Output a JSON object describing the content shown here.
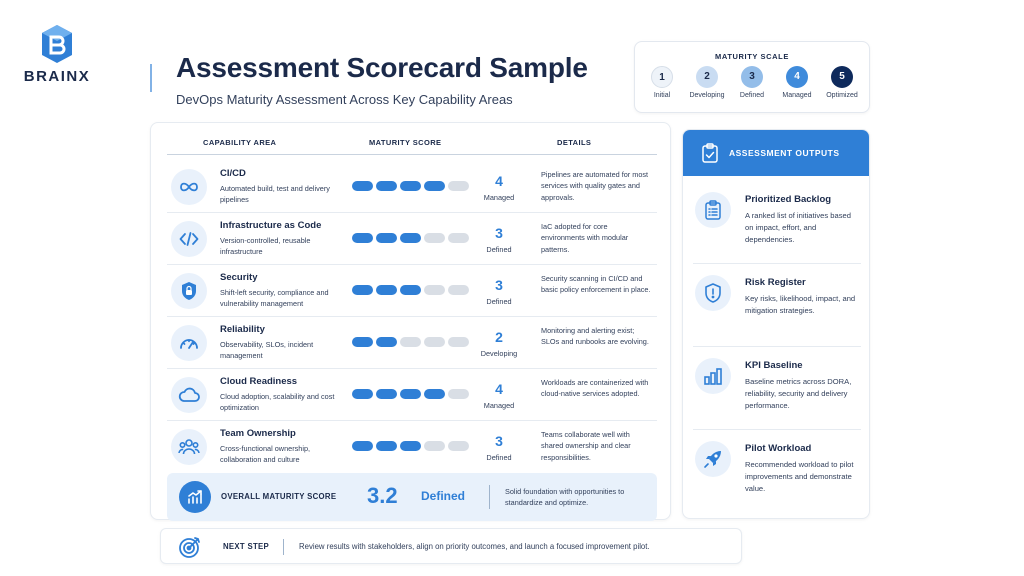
{
  "brand": {
    "name": "BRAINX"
  },
  "header": {
    "title": "Assessment Scorecard Sample",
    "subtitle": "DevOps Maturity Assessment Across Key Capability Areas"
  },
  "maturity_scale": {
    "title": "MATURITY SCALE",
    "levels": [
      {
        "number": "1",
        "label": "Initial",
        "color": "#eef3f9"
      },
      {
        "number": "2",
        "label": "Developing",
        "color": "#c9dcf2"
      },
      {
        "number": "3",
        "label": "Defined",
        "color": "#93bde9"
      },
      {
        "number": "4",
        "label": "Managed",
        "color": "#3f8bdb"
      },
      {
        "number": "5",
        "label": "Optimized",
        "color": "#0e2a5c"
      }
    ]
  },
  "table": {
    "headers": {
      "capability": "CAPABILITY AREA",
      "score": "MATURITY SCORE",
      "details": "DETAILS"
    },
    "max_score": 5,
    "rows": [
      {
        "icon": "infinity-icon",
        "title": "CI/CD",
        "description": "Automated build, test and delivery pipelines",
        "score": 4,
        "score_text": "4",
        "level": "Managed",
        "details": "Pipelines are automated for most services with quality gates and approvals."
      },
      {
        "icon": "code-icon",
        "title": "Infrastructure as Code",
        "description": "Version-controlled, reusable infrastructure",
        "score": 3,
        "score_text": "3",
        "level": "Defined",
        "details": "IaC adopted for core environments with modular patterns."
      },
      {
        "icon": "shield-lock-icon",
        "title": "Security",
        "description": "Shift-left security, compliance and vulnerability management",
        "score": 3,
        "score_text": "3",
        "level": "Defined",
        "details": "Security scanning in CI/CD and basic policy enforcement in place."
      },
      {
        "icon": "gauge-icon",
        "title": "Reliability",
        "description": "Observability, SLOs, incident management",
        "score": 2,
        "score_text": "2",
        "level": "Developing",
        "details": "Monitoring and alerting exist; SLOs and runbooks are evolving."
      },
      {
        "icon": "cloud-icon",
        "title": "Cloud Readiness",
        "description": "Cloud adoption, scalability and cost optimization",
        "score": 4,
        "score_text": "4",
        "level": "Managed",
        "details": "Workloads are containerized with cloud-native services adopted."
      },
      {
        "icon": "team-icon",
        "title": "Team Ownership",
        "description": "Cross-functional ownership, collaboration and culture",
        "score": 3,
        "score_text": "3",
        "level": "Defined",
        "details": "Teams collaborate well with shared ownership and clear responsibilities."
      }
    ],
    "bar_filled_color": "#2f7fd6",
    "bar_empty_color": "#d9dee5"
  },
  "overall": {
    "label": "OVERALL MATURITY SCORE",
    "score": "3.2",
    "level": "Defined",
    "summary": "Solid foundation with opportunities to standardize and optimize."
  },
  "outputs": {
    "title": "ASSESSMENT OUTPUTS",
    "items": [
      {
        "icon": "clipboard-list-icon",
        "title": "Prioritized Backlog",
        "description": "A ranked list of initiatives based on impact, effort, and dependencies."
      },
      {
        "icon": "shield-alert-icon",
        "title": "Risk Register",
        "description": "Key risks, likelihood, impact, and mitigation strategies."
      },
      {
        "icon": "bar-chart-icon",
        "title": "KPI Baseline",
        "description": "Baseline metrics across DORA, reliability, security and delivery performance."
      },
      {
        "icon": "rocket-icon",
        "title": "Pilot Workload",
        "description": "Recommended workload to pilot improvements and demonstrate value."
      }
    ]
  },
  "next_step": {
    "label": "NEXT STEP",
    "text": "Review results with stakeholders, align on priority outcomes, and launch a focused improvement pilot."
  }
}
